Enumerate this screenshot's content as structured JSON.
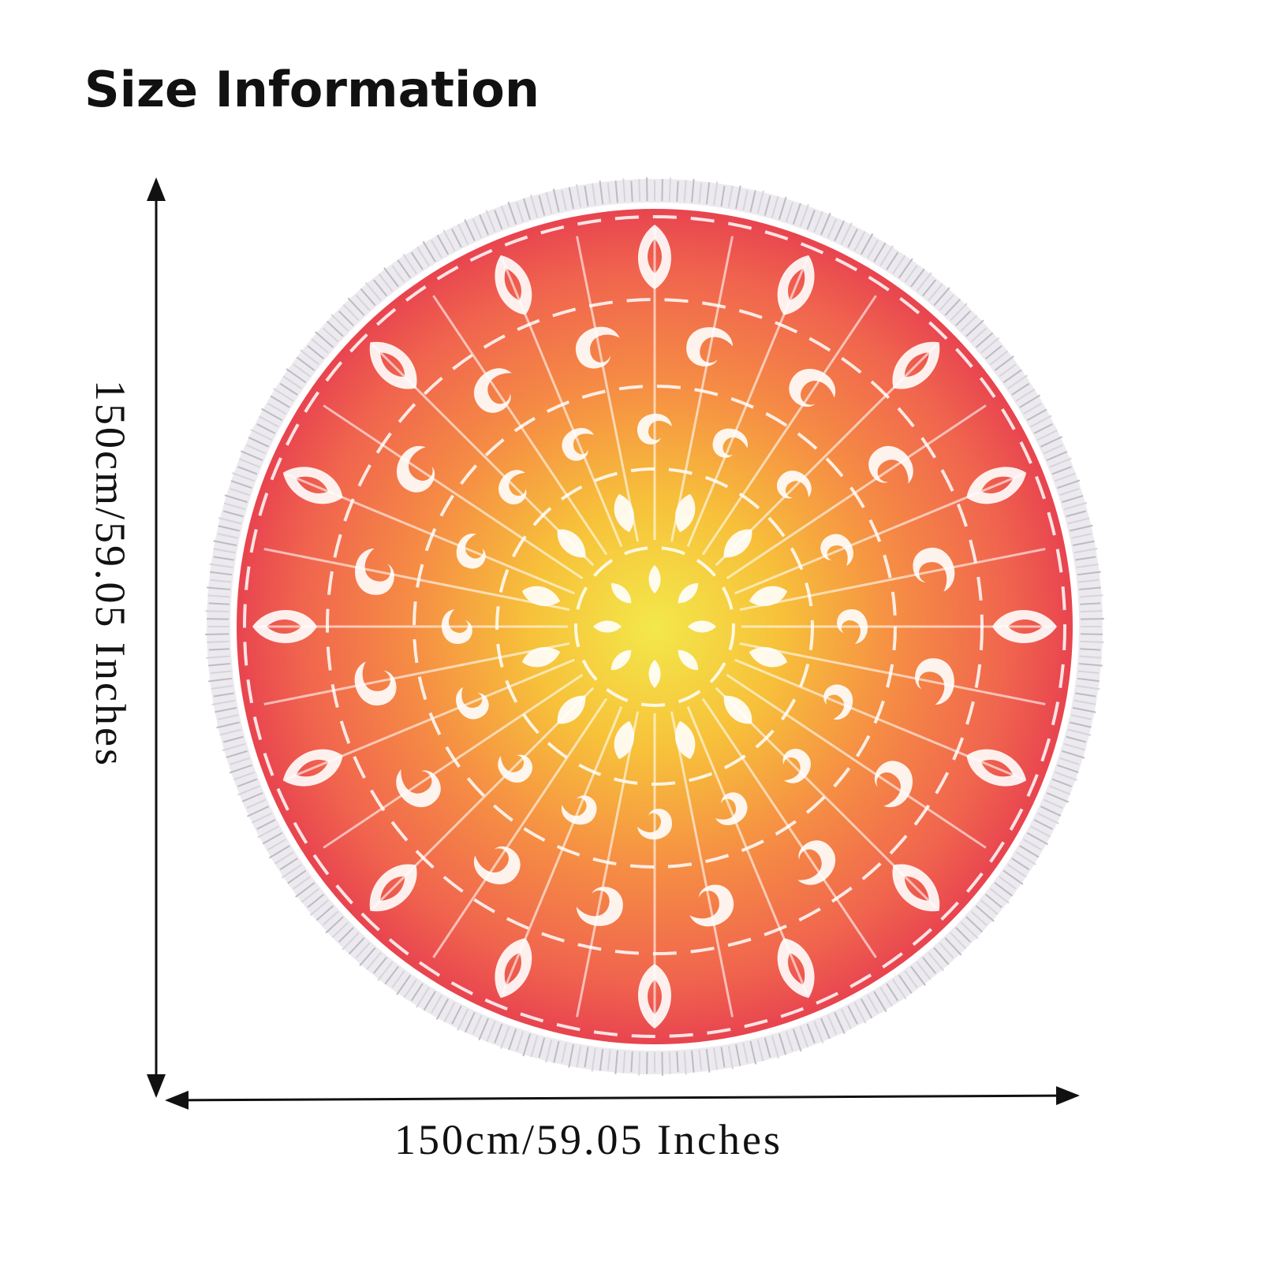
{
  "header": {
    "title": "Size Information"
  },
  "dimensions": {
    "height": {
      "label": "150cm/59.05 Inches"
    },
    "width": {
      "label": "150cm/59.05 Inches"
    }
  }
}
